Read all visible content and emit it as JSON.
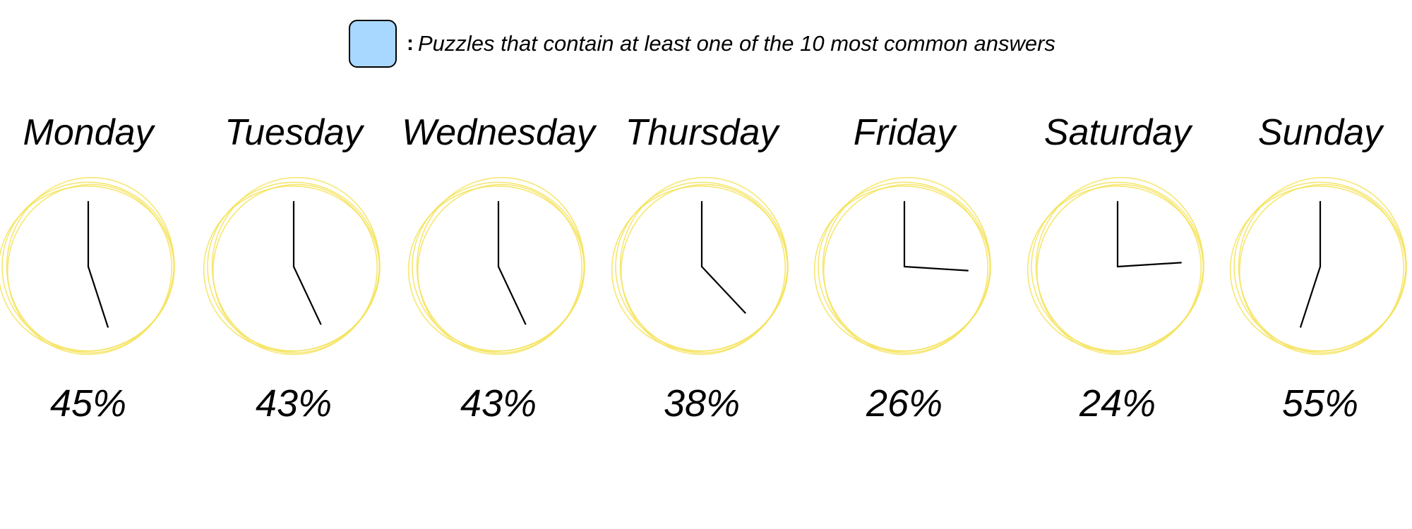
{
  "legend": {
    "colon": ":",
    "text": "Puzzles that contain at least one of the 10 most common answers",
    "swatch_color": "#a8d8ff",
    "swatch_border_color": "#000000"
  },
  "colors": {
    "ring": "#f4e35a",
    "hand": "#000000",
    "text": "#000000"
  },
  "chart_data": {
    "type": "clock-gauge",
    "title": "",
    "measure": "Puzzles that contain at least one of the 10 most common answers",
    "categories": [
      "Monday",
      "Tuesday",
      "Wednesday",
      "Thursday",
      "Friday",
      "Saturday",
      "Sunday"
    ],
    "values": [
      45,
      43,
      43,
      38,
      26,
      24,
      55
    ],
    "value_labels": [
      "45%",
      "43%",
      "43%",
      "38%",
      "26%",
      "24%",
      "55%"
    ],
    "unit": "%",
    "range": [
      0,
      100
    ]
  }
}
